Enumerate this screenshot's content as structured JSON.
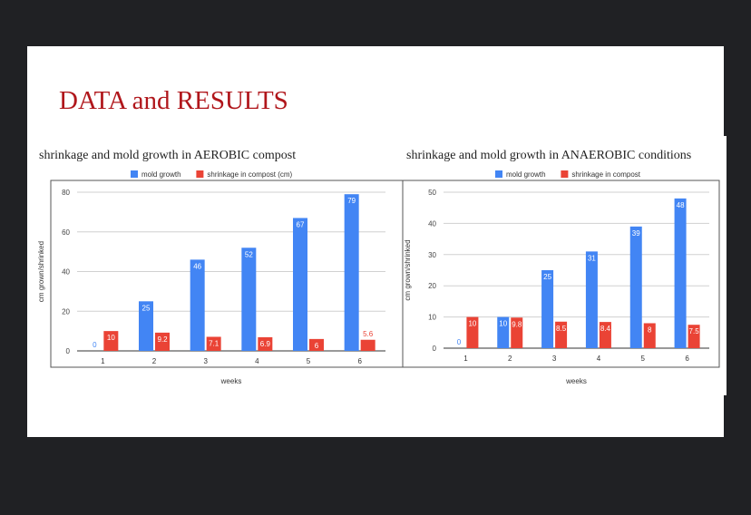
{
  "slide": {
    "title": "DATA and RESULTS"
  },
  "colors": {
    "mold": "#4285f4",
    "shrink": "#ea4335",
    "title": "#b0161b"
  },
  "chart_data": [
    {
      "type": "bar",
      "title": "shrinkage and mold growth in AEROBIC compost",
      "xlabel": "weeks",
      "ylabel": "cm grown/shrinked",
      "categories": [
        "1",
        "2",
        "3",
        "4",
        "5",
        "6"
      ],
      "ylim": [
        0,
        80
      ],
      "yticks": [
        0,
        20,
        40,
        60,
        80
      ],
      "legend_position": "top",
      "grid": true,
      "series": [
        {
          "name": "mold growth",
          "values": [
            0,
            25,
            46,
            52,
            67,
            79
          ],
          "labels": [
            "0",
            "25",
            "46",
            "52",
            "67",
            "79"
          ]
        },
        {
          "name": "shrinkage in compost (cm)",
          "values": [
            10,
            9.2,
            7.1,
            6.9,
            6,
            5.6
          ],
          "labels": [
            "10",
            "9.2",
            "7.1",
            "6.9",
            "6",
            "5.6"
          ]
        }
      ]
    },
    {
      "type": "bar",
      "title": "shrinkage and mold growth in ANAEROBIC conditions",
      "xlabel": "weeks",
      "ylabel": "cm grown/shrinked",
      "categories": [
        "1",
        "2",
        "3",
        "4",
        "5",
        "6"
      ],
      "ylim": [
        0,
        50
      ],
      "yticks": [
        0,
        10,
        20,
        30,
        40,
        50
      ],
      "legend_position": "top",
      "grid": true,
      "series": [
        {
          "name": "mold growth",
          "values": [
            0,
            10,
            25,
            31,
            39,
            48
          ],
          "labels": [
            "0",
            "10",
            "25",
            "31",
            "39",
            "48"
          ]
        },
        {
          "name": "shrinkage in compost",
          "values": [
            10,
            9.8,
            8.5,
            8.4,
            8,
            7.5
          ],
          "labels": [
            "10",
            "9.8",
            "8.5",
            "8.4",
            "8",
            "7.5"
          ]
        }
      ]
    }
  ]
}
